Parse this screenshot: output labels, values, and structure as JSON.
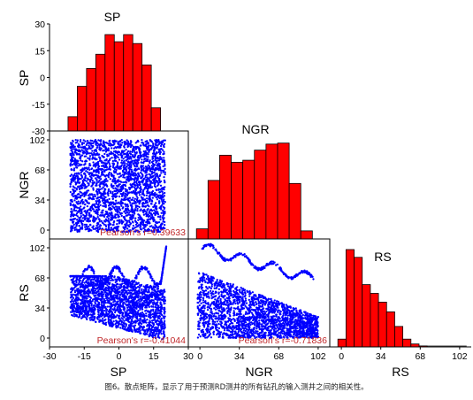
{
  "chart_data": {
    "type": "scatter-matrix",
    "variables": [
      "SP",
      "NGR",
      "RS"
    ],
    "colors": {
      "hist": "#ff0000",
      "scatter": "#0000ff",
      "pearson": "#c0282a"
    },
    "histograms": [
      {
        "variable": "SP",
        "ylim": [
          -30,
          30
        ],
        "yticks": [
          -30,
          -15,
          0,
          15,
          30
        ],
        "bins": [
          {
            "x0": -22,
            "x1": -18,
            "top": -22
          },
          {
            "x0": -18,
            "x1": -14,
            "top": -5
          },
          {
            "x0": -14,
            "x1": -10,
            "top": 5
          },
          {
            "x0": -10,
            "x1": -6,
            "top": 13
          },
          {
            "x0": -6,
            "x1": -2,
            "top": 24
          },
          {
            "x0": -2,
            "x1": 2,
            "top": 20
          },
          {
            "x0": 2,
            "x1": 6,
            "top": 24
          },
          {
            "x0": 6,
            "x1": 10,
            "top": 19
          },
          {
            "x0": 10,
            "x1": 14,
            "top": 7
          },
          {
            "x0": 14,
            "x1": 18,
            "top": -17
          }
        ]
      },
      {
        "variable": "NGR",
        "bins": [
          {
            "x0": -3,
            "x1": 7,
            "h": 0.1
          },
          {
            "x0": 7,
            "x1": 17,
            "h": 0.58
          },
          {
            "x0": 17,
            "x1": 27,
            "h": 0.83
          },
          {
            "x0": 27,
            "x1": 37,
            "h": 0.76
          },
          {
            "x0": 37,
            "x1": 47,
            "h": 0.78
          },
          {
            "x0": 47,
            "x1": 57,
            "h": 0.88
          },
          {
            "x0": 57,
            "x1": 67,
            "h": 0.94
          },
          {
            "x0": 67,
            "x1": 77,
            "h": 0.95
          },
          {
            "x0": 77,
            "x1": 87,
            "h": 0.55
          },
          {
            "x0": 87,
            "x1": 97,
            "h": 0.08
          }
        ]
      },
      {
        "variable": "RS",
        "bins": [
          {
            "x0": -3,
            "x1": 4,
            "h": 0.08
          },
          {
            "x0": 4,
            "x1": 11,
            "h": 1.0
          },
          {
            "x0": 11,
            "x1": 18,
            "h": 0.92
          },
          {
            "x0": 18,
            "x1": 25,
            "h": 0.64
          },
          {
            "x0": 25,
            "x1": 32,
            "h": 0.55
          },
          {
            "x0": 32,
            "x1": 39,
            "h": 0.46
          },
          {
            "x0": 39,
            "x1": 46,
            "h": 0.36
          },
          {
            "x0": 46,
            "x1": 53,
            "h": 0.21
          },
          {
            "x0": 53,
            "x1": 60,
            "h": 0.08
          },
          {
            "x0": 60,
            "x1": 67,
            "h": 0.03
          },
          {
            "x0": 67,
            "x1": 74,
            "h": 0.01
          }
        ]
      }
    ],
    "scatter_panels": [
      {
        "x": "SP",
        "y": "NGR",
        "pearson_label": "Pearson's r=0.39633",
        "r": 0.39633
      },
      {
        "x": "SP",
        "y": "RS",
        "pearson_label": "Pearson's r=-0.41044",
        "r": -0.41044
      },
      {
        "x": "NGR",
        "y": "RS",
        "pearson_label": "Pearson's r=-0.71836",
        "r": -0.71836
      }
    ],
    "axes": {
      "SP": {
        "range": [
          -30,
          30
        ],
        "ticks": [
          -30,
          -15,
          0,
          15,
          30
        ],
        "tick_labels": [
          "-30",
          "-15",
          "0",
          "15",
          "30"
        ]
      },
      "NGR": {
        "range": [
          -10,
          112
        ],
        "ticks": [
          0,
          34,
          68,
          102
        ],
        "tick_labels": [
          "0",
          "34",
          "68",
          "102"
        ]
      },
      "RS": {
        "range": [
          -10,
          112
        ],
        "ticks": [
          0,
          34,
          68,
          102
        ],
        "tick_labels": [
          "0",
          "34",
          "68",
          "102"
        ]
      }
    },
    "sp_hist_tick_labels": [
      "30",
      "15",
      "0",
      "-15",
      "-30"
    ]
  },
  "caption": "图6。散点矩阵，显示了用于预测RD测井的所有钻孔的输入测井之间的相关性。"
}
